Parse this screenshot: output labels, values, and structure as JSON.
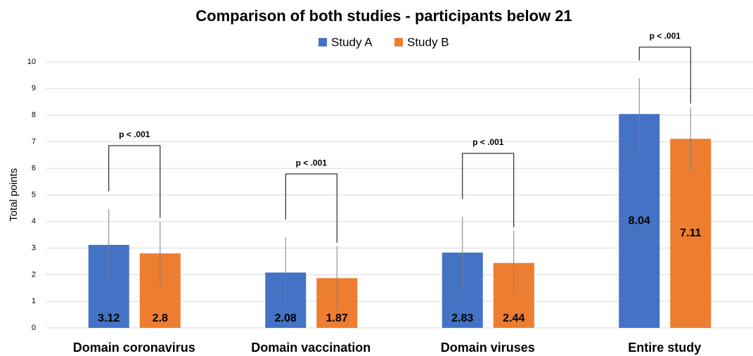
{
  "chart_data": {
    "type": "bar",
    "title": "Comparison of both studies - participants below 21",
    "y_label": "Total points",
    "categories": [
      "Domain coronavirus",
      "Domain vaccination",
      "Domain viruses",
      "Entire study"
    ],
    "series": [
      {
        "name": "Study A",
        "color": "#4472c4",
        "values": [
          3.12,
          2.08,
          2.83,
          8.04
        ],
        "errors": [
          1.35,
          1.33,
          1.35,
          1.35
        ]
      },
      {
        "name": "Study B",
        "color": "#ed7d31",
        "values": [
          2.8,
          1.87,
          2.44,
          7.11
        ],
        "errors": [
          1.2,
          1.2,
          1.21,
          1.19
        ]
      }
    ],
    "annotations": [
      "p < .001",
      "p < .001",
      "p < .001",
      "p < .001"
    ],
    "ylim": [
      0,
      10
    ],
    "yticks": [
      0,
      1,
      2,
      3,
      4,
      5,
      6,
      7,
      8,
      9,
      10
    ],
    "grid": true,
    "legend": "top"
  }
}
